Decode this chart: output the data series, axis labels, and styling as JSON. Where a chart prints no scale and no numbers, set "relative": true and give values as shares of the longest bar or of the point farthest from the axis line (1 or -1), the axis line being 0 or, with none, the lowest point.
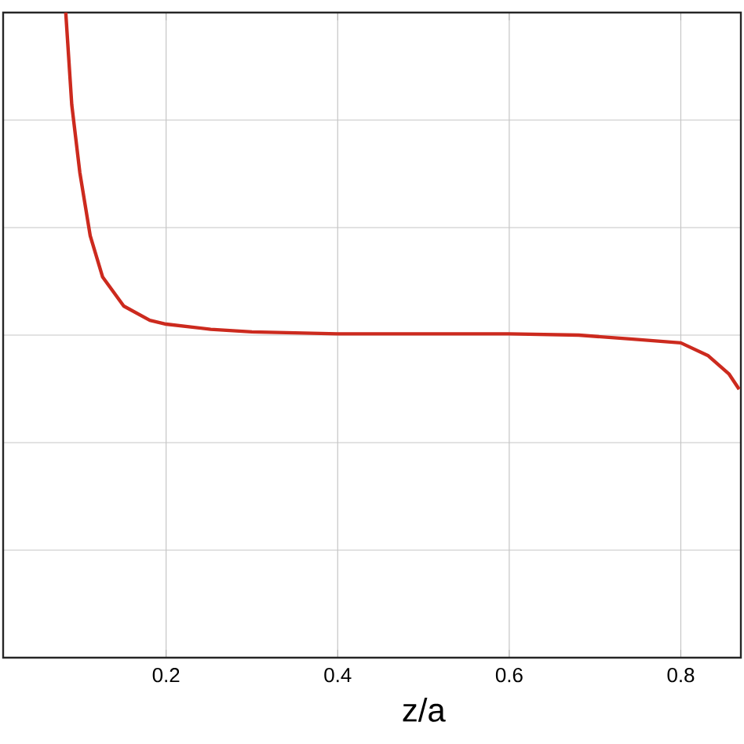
{
  "chart_data": {
    "type": "line",
    "xlabel": "z/a",
    "relative": true,
    "xlim": [
      0.01,
      0.87
    ],
    "xticks": [
      0.2,
      0.4,
      0.6,
      0.8
    ],
    "tick_labels": "x",
    "grid": true,
    "marker": "none",
    "line_style": "solid",
    "x": [
      0.083,
      0.09,
      0.0994,
      0.1115,
      0.126,
      0.1506,
      0.181,
      0.2,
      0.252,
      0.3,
      0.4,
      0.5,
      0.6,
      0.681,
      0.741,
      0.8,
      0.832,
      0.856,
      0.868
    ],
    "series": [
      {
        "color": "#cc2a1e",
        "values": [
          1.0,
          0.857,
          0.752,
          0.654,
          0.59,
          0.545,
          0.523,
          0.517,
          0.509,
          0.505,
          0.502,
          0.502,
          0.502,
          0.5,
          0.494,
          0.488,
          0.468,
          0.44,
          0.416
        ]
      }
    ]
  }
}
